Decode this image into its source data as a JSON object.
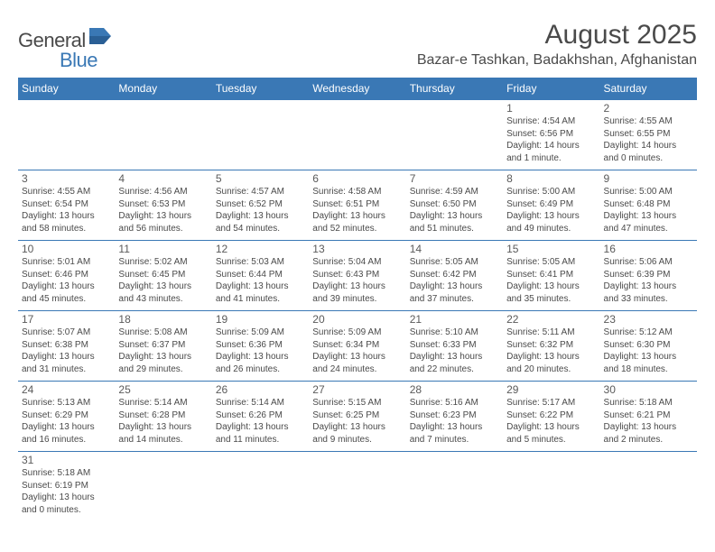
{
  "logo": {
    "text1": "General",
    "text2": "Blue"
  },
  "title": "August 2025",
  "location": "Bazar-e Tashkan, Badakhshan, Afghanistan",
  "header_bg": "#3a78b5",
  "header_fg": "#ffffff",
  "border_color": "#3a78b5",
  "text_color": "#4a4a4a",
  "daynum_color": "#5a5a5a",
  "days": [
    "Sunday",
    "Monday",
    "Tuesday",
    "Wednesday",
    "Thursday",
    "Friday",
    "Saturday"
  ],
  "weeks": [
    [
      null,
      null,
      null,
      null,
      null,
      {
        "n": "1",
        "sr": "4:54 AM",
        "ss": "6:56 PM",
        "dl": "14 hours and 1 minute."
      },
      {
        "n": "2",
        "sr": "4:55 AM",
        "ss": "6:55 PM",
        "dl": "14 hours and 0 minutes."
      }
    ],
    [
      {
        "n": "3",
        "sr": "4:55 AM",
        "ss": "6:54 PM",
        "dl": "13 hours and 58 minutes."
      },
      {
        "n": "4",
        "sr": "4:56 AM",
        "ss": "6:53 PM",
        "dl": "13 hours and 56 minutes."
      },
      {
        "n": "5",
        "sr": "4:57 AM",
        "ss": "6:52 PM",
        "dl": "13 hours and 54 minutes."
      },
      {
        "n": "6",
        "sr": "4:58 AM",
        "ss": "6:51 PM",
        "dl": "13 hours and 52 minutes."
      },
      {
        "n": "7",
        "sr": "4:59 AM",
        "ss": "6:50 PM",
        "dl": "13 hours and 51 minutes."
      },
      {
        "n": "8",
        "sr": "5:00 AM",
        "ss": "6:49 PM",
        "dl": "13 hours and 49 minutes."
      },
      {
        "n": "9",
        "sr": "5:00 AM",
        "ss": "6:48 PM",
        "dl": "13 hours and 47 minutes."
      }
    ],
    [
      {
        "n": "10",
        "sr": "5:01 AM",
        "ss": "6:46 PM",
        "dl": "13 hours and 45 minutes."
      },
      {
        "n": "11",
        "sr": "5:02 AM",
        "ss": "6:45 PM",
        "dl": "13 hours and 43 minutes."
      },
      {
        "n": "12",
        "sr": "5:03 AM",
        "ss": "6:44 PM",
        "dl": "13 hours and 41 minutes."
      },
      {
        "n": "13",
        "sr": "5:04 AM",
        "ss": "6:43 PM",
        "dl": "13 hours and 39 minutes."
      },
      {
        "n": "14",
        "sr": "5:05 AM",
        "ss": "6:42 PM",
        "dl": "13 hours and 37 minutes."
      },
      {
        "n": "15",
        "sr": "5:05 AM",
        "ss": "6:41 PM",
        "dl": "13 hours and 35 minutes."
      },
      {
        "n": "16",
        "sr": "5:06 AM",
        "ss": "6:39 PM",
        "dl": "13 hours and 33 minutes."
      }
    ],
    [
      {
        "n": "17",
        "sr": "5:07 AM",
        "ss": "6:38 PM",
        "dl": "13 hours and 31 minutes."
      },
      {
        "n": "18",
        "sr": "5:08 AM",
        "ss": "6:37 PM",
        "dl": "13 hours and 29 minutes."
      },
      {
        "n": "19",
        "sr": "5:09 AM",
        "ss": "6:36 PM",
        "dl": "13 hours and 26 minutes."
      },
      {
        "n": "20",
        "sr": "5:09 AM",
        "ss": "6:34 PM",
        "dl": "13 hours and 24 minutes."
      },
      {
        "n": "21",
        "sr": "5:10 AM",
        "ss": "6:33 PM",
        "dl": "13 hours and 22 minutes."
      },
      {
        "n": "22",
        "sr": "5:11 AM",
        "ss": "6:32 PM",
        "dl": "13 hours and 20 minutes."
      },
      {
        "n": "23",
        "sr": "5:12 AM",
        "ss": "6:30 PM",
        "dl": "13 hours and 18 minutes."
      }
    ],
    [
      {
        "n": "24",
        "sr": "5:13 AM",
        "ss": "6:29 PM",
        "dl": "13 hours and 16 minutes."
      },
      {
        "n": "25",
        "sr": "5:14 AM",
        "ss": "6:28 PM",
        "dl": "13 hours and 14 minutes."
      },
      {
        "n": "26",
        "sr": "5:14 AM",
        "ss": "6:26 PM",
        "dl": "13 hours and 11 minutes."
      },
      {
        "n": "27",
        "sr": "5:15 AM",
        "ss": "6:25 PM",
        "dl": "13 hours and 9 minutes."
      },
      {
        "n": "28",
        "sr": "5:16 AM",
        "ss": "6:23 PM",
        "dl": "13 hours and 7 minutes."
      },
      {
        "n": "29",
        "sr": "5:17 AM",
        "ss": "6:22 PM",
        "dl": "13 hours and 5 minutes."
      },
      {
        "n": "30",
        "sr": "5:18 AM",
        "ss": "6:21 PM",
        "dl": "13 hours and 2 minutes."
      }
    ],
    [
      {
        "n": "31",
        "sr": "5:18 AM",
        "ss": "6:19 PM",
        "dl": "13 hours and 0 minutes."
      },
      null,
      null,
      null,
      null,
      null,
      null
    ]
  ],
  "labels": {
    "sunrise": "Sunrise: ",
    "sunset": "Sunset: ",
    "daylight": "Daylight: "
  }
}
